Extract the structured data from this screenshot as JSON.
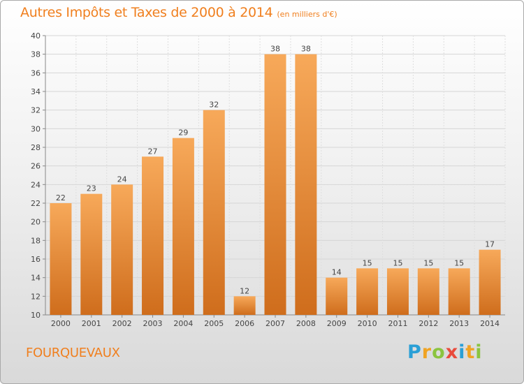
{
  "header": {
    "title": "Autres Impôts et Taxes de 2000 à 2014",
    "unit": "(en milliers d'€)"
  },
  "footer": {
    "location": "FOURQUEVAUX",
    "logo": "Proxiti"
  },
  "colors": {
    "bar_light": "#f7a95a",
    "bar_dark": "#cf6d1c",
    "title": "#f07f1e"
  },
  "chart_data": {
    "type": "bar",
    "title": "Autres Impôts et Taxes de 2000 à 2014",
    "subtitle": "(en milliers d'€)",
    "categories": [
      "2000",
      "2001",
      "2002",
      "2003",
      "2004",
      "2005",
      "2006",
      "2007",
      "2008",
      "2009",
      "2010",
      "2011",
      "2012",
      "2013",
      "2014"
    ],
    "values": [
      22,
      23,
      24,
      27,
      29,
      32,
      12,
      38,
      38,
      14,
      15,
      15,
      15,
      15,
      17
    ],
    "ylim": [
      10,
      40
    ],
    "yticks": [
      10,
      12,
      14,
      16,
      18,
      20,
      22,
      24,
      26,
      28,
      30,
      32,
      34,
      36,
      38,
      40
    ],
    "grid": true,
    "data_labels": true
  }
}
